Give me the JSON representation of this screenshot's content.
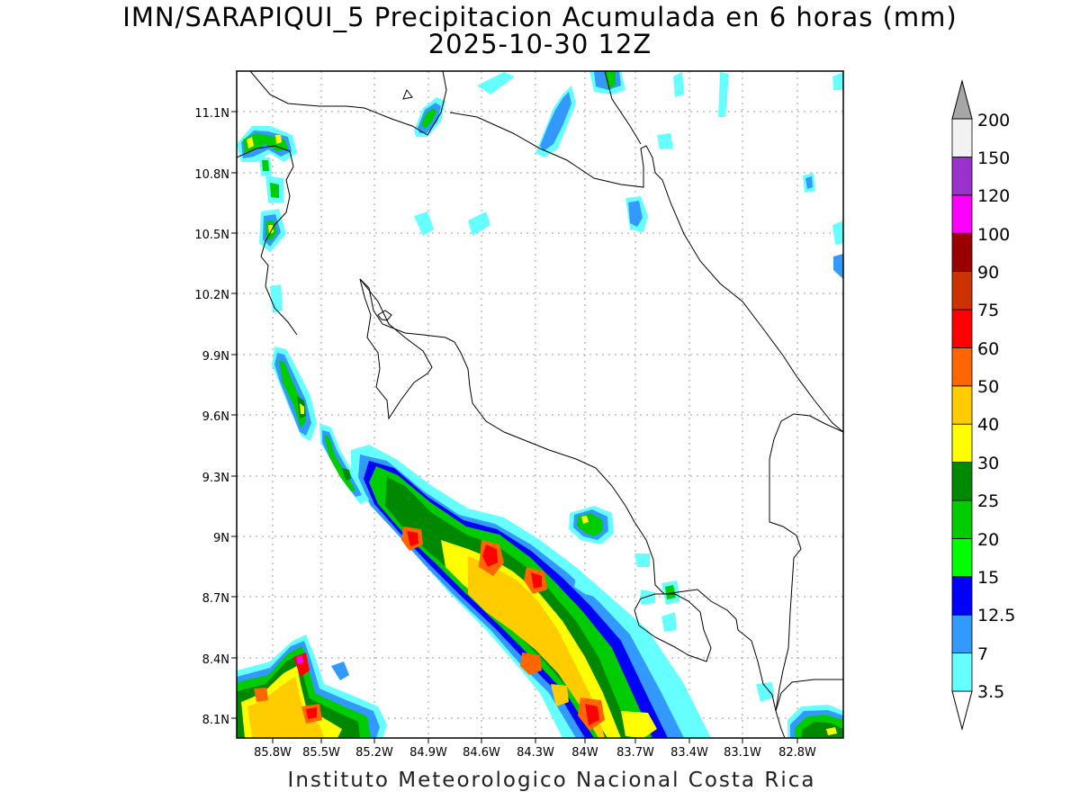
{
  "title": {
    "line1": "IMN/SARAPIQUI_5 Precipitacion Acumulada en 6 horas (mm)",
    "line2": "2025-10-30 12Z"
  },
  "credit": "Instituto Meteorologico Nacional Costa Rica",
  "map": {
    "lon_range": [
      -86.0,
      -83.0
    ],
    "lat_range": [
      8.0,
      11.3
    ],
    "lon_ticks": [
      "85.8W",
      "85.5W",
      "85.2W",
      "84.9W",
      "84.6W",
      "84.3W",
      "84W",
      "83.7W",
      "83.4W",
      "83.1W",
      "82.8W"
    ],
    "lat_ticks": [
      "8.1N",
      "8.4N",
      "8.7N",
      "9N",
      "9.3N",
      "9.6N",
      "9.9N",
      "10.2N",
      "10.5N",
      "10.8N",
      "11.1N"
    ],
    "gridlines": "dotted"
  },
  "colorbar": {
    "labels": [
      "3.5",
      "7",
      "12.5",
      "15",
      "20",
      "25",
      "30",
      "40",
      "50",
      "60",
      "75",
      "90",
      "100",
      "120",
      "150",
      "200"
    ],
    "colors": [
      "#ffffff",
      "#66ffff",
      "#3399ff",
      "#0000ff",
      "#00ff00",
      "#00cc00",
      "#008800",
      "#ffff00",
      "#ffcc00",
      "#ff6600",
      "#ff0000",
      "#cc3300",
      "#990000",
      "#ff00ff",
      "#9933cc",
      "#f2f2f2",
      "#a6a6a6"
    ]
  }
}
